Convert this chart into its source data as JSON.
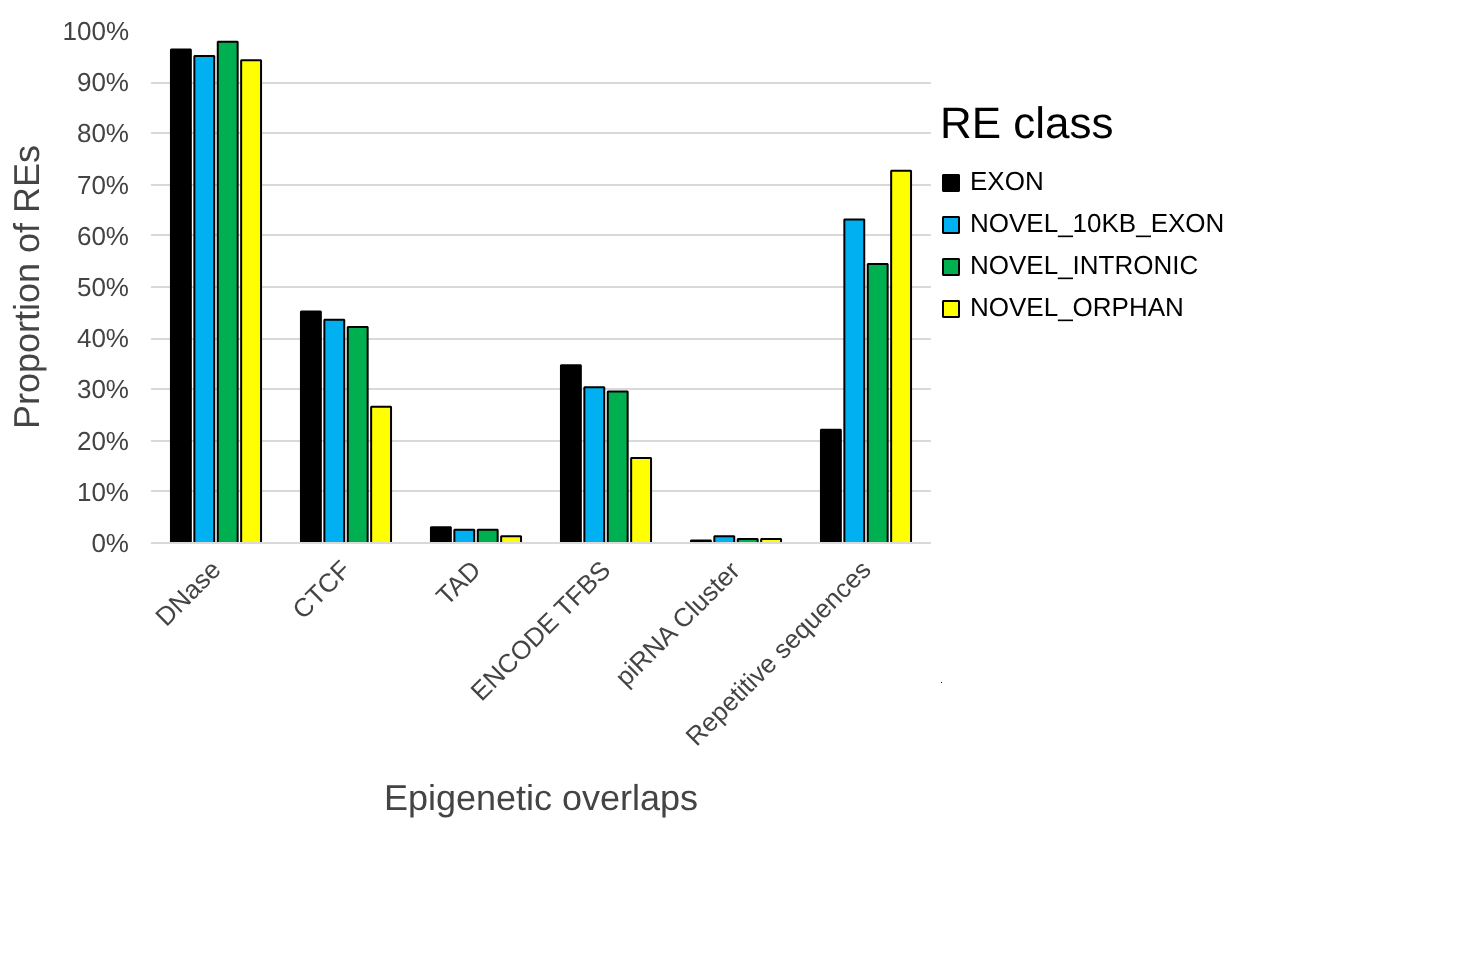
{
  "chart_data": {
    "type": "bar",
    "xlabel": "Epigenetic overlaps",
    "ylabel": "Proportion of REs",
    "legend_title": "RE class",
    "categories": [
      "DNase",
      "CTCF",
      "TAD",
      "ENCODE TFBS",
      "piRNA Cluster",
      "Repetitive sequences"
    ],
    "series": [
      {
        "name": "EXON",
        "color": "#000000",
        "values": [
          96.4,
          45.2,
          3.1,
          34.7,
          0.5,
          22.1
        ]
      },
      {
        "name": "NOVEL_10KB_EXON",
        "color": "#00b0f0",
        "values": [
          95.1,
          43.6,
          2.6,
          30.4,
          1.3,
          63.2
        ]
      },
      {
        "name": "NOVEL_INTRONIC",
        "color": "#00b050",
        "values": [
          97.9,
          42.2,
          2.6,
          29.6,
          0.8,
          54.5
        ]
      },
      {
        "name": "NOVEL_ORPHAN",
        "color": "#ffff00",
        "values": [
          94.3,
          26.6,
          1.3,
          16.6,
          0.8,
          72.7
        ]
      }
    ],
    "ylim": [
      0,
      100
    ],
    "yticks": [
      {
        "value": 0,
        "label": "0%"
      },
      {
        "value": 10,
        "label": "10%"
      },
      {
        "value": 20,
        "label": "20%"
      },
      {
        "value": 30,
        "label": "30%"
      },
      {
        "value": 40,
        "label": "40%"
      },
      {
        "value": 50,
        "label": "50%"
      },
      {
        "value": 60,
        "label": "60%"
      },
      {
        "value": 70,
        "label": "70%"
      },
      {
        "value": 80,
        "label": "80%"
      },
      {
        "value": 90,
        "label": "90%"
      },
      {
        "value": 100,
        "label": "100%"
      }
    ],
    "grid": "y",
    "legend": "right"
  }
}
